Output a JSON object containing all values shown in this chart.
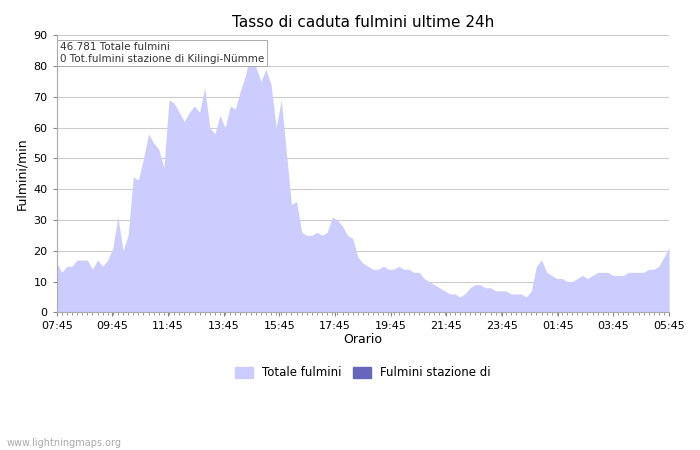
{
  "title": "Tasso di caduta fulmini ultime 24h",
  "xlabel": "Orario",
  "ylabel": "Fulmini/min",
  "annotation_line1": "46.781 Totale fulmini",
  "annotation_line2": "0 Tot.fulmini stazione di Kilingi-Nümme",
  "ylim": [
    0,
    90
  ],
  "yticks": [
    0,
    10,
    20,
    30,
    40,
    50,
    60,
    70,
    80,
    90
  ],
  "xtick_labels": [
    "07:45",
    "09:45",
    "11:45",
    "13:45",
    "15:45",
    "17:45",
    "19:45",
    "21:45",
    "23:45",
    "01:45",
    "03:45",
    "05:45"
  ],
  "fill_color": "#ccccff",
  "fill_color2": "#6666bb",
  "background_color": "#ffffff",
  "legend_label1": "Totale fulmini",
  "legend_label2": "Fulmini stazione di",
  "watermark": "www.lightningmaps.org",
  "total_data": [
    16,
    13,
    15,
    15,
    17,
    17,
    17,
    14,
    17,
    15,
    17,
    21,
    31,
    20,
    25,
    44,
    43,
    50,
    58,
    55,
    53,
    47,
    69,
    68,
    65,
    62,
    65,
    67,
    65,
    73,
    60,
    58,
    64,
    60,
    67,
    66,
    72,
    77,
    85,
    80,
    75,
    79,
    74,
    60,
    69,
    52,
    35,
    36,
    26,
    25,
    25,
    26,
    25,
    26,
    31,
    30,
    28,
    25,
    24,
    18,
    16,
    15,
    14,
    14,
    15,
    14,
    14,
    15,
    14,
    14,
    13,
    13,
    11,
    10,
    9,
    8,
    7,
    6,
    6,
    5,
    6,
    8,
    9,
    9,
    8,
    8,
    7,
    7,
    7,
    6,
    6,
    6,
    5,
    7,
    15,
    17,
    13,
    12,
    11,
    11,
    10,
    10,
    11,
    12,
    11,
    12,
    13,
    13,
    13,
    12,
    12,
    12,
    13,
    13,
    13,
    13,
    14,
    14,
    15,
    18,
    21
  ],
  "station_data": [
    0,
    0,
    0,
    0,
    0,
    0,
    0,
    0,
    0,
    0,
    0,
    0,
    0,
    0,
    0,
    0,
    0,
    0,
    0,
    0,
    0,
    0,
    0,
    0,
    0,
    0,
    0,
    0,
    0,
    0,
    0,
    0,
    0,
    0,
    0,
    0,
    0,
    0,
    0,
    0,
    0,
    0,
    0,
    0,
    0,
    0,
    0,
    0,
    0,
    0,
    0,
    0,
    0,
    0,
    0,
    0,
    0,
    0,
    0,
    0,
    0,
    0,
    0,
    0,
    0,
    0,
    0,
    0,
    0,
    0,
    0,
    0,
    0,
    0,
    0,
    0,
    0,
    0,
    0,
    0,
    0,
    0,
    0,
    0,
    0,
    0,
    0,
    0,
    0,
    0,
    0,
    0,
    0,
    0,
    0,
    0,
    0,
    0,
    0,
    0,
    0,
    0,
    0,
    0,
    0,
    0,
    0,
    0,
    0,
    0,
    0,
    0,
    0,
    0,
    0,
    0,
    0,
    0,
    0,
    0,
    0
  ]
}
